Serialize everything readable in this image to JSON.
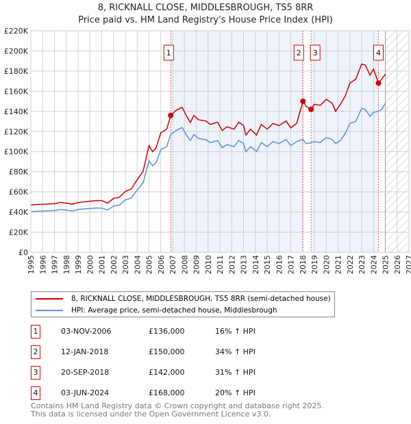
{
  "title": "8, RICKNALL CLOSE, MIDDLESBROUGH, TS5 8RR",
  "subtitle": "Price paid vs. HM Land Registry's House Price Index (HPI)",
  "chart_data": {
    "type": "line",
    "xlim": [
      1995,
      2027
    ],
    "ylim": [
      0,
      220000
    ],
    "x_ticks": [
      "1995",
      "1996",
      "1997",
      "1998",
      "1999",
      "2000",
      "2001",
      "2002",
      "2003",
      "2004",
      "2005",
      "2006",
      "2007",
      "2008",
      "2009",
      "2010",
      "2011",
      "2012",
      "2013",
      "2014",
      "2015",
      "2016",
      "2017",
      "2018",
      "2019",
      "2020",
      "2021",
      "2022",
      "2023",
      "2024",
      "2025",
      "2026",
      "2027"
    ],
    "y_ticks": [
      {
        "v": 0,
        "label": "£0"
      },
      {
        "v": 20000,
        "label": "£20K"
      },
      {
        "v": 40000,
        "label": "£40K"
      },
      {
        "v": 60000,
        "label": "£60K"
      },
      {
        "v": 80000,
        "label": "£80K"
      },
      {
        "v": 100000,
        "label": "£100K"
      },
      {
        "v": 120000,
        "label": "£120K"
      },
      {
        "v": 140000,
        "label": "£140K"
      },
      {
        "v": 160000,
        "label": "£160K"
      },
      {
        "v": 180000,
        "label": "£180K"
      },
      {
        "v": 200000,
        "label": "£200K"
      },
      {
        "v": 220000,
        "label": "£220K"
      }
    ],
    "grid": true,
    "forecast_hatch_from": 2025,
    "series": [
      {
        "name": "8, RICKNALL CLOSE, MIDDLESBROUGH, TS5 8RR (semi-detached house)",
        "color": "#cc0000",
        "x": [
          1995,
          1996,
          1997,
          1997.5,
          1998,
          1998.5,
          1999,
          2000,
          2000.5,
          2001,
          2001.5,
          2002,
          2002.5,
          2003,
          2003.5,
          2004,
          2004.5,
          2005,
          2005.3,
          2005.6,
          2006,
          2006.5,
          2006.84,
          2007.3,
          2007.8,
          2008.2,
          2008.5,
          2008.8,
          2009.2,
          2009.8,
          2010.2,
          2010.8,
          2011.2,
          2011.6,
          2012.2,
          2012.6,
          2013,
          2013.2,
          2013.6,
          2014.1,
          2014.5,
          2015,
          2015.5,
          2016,
          2016.6,
          2017,
          2017.5,
          2018.03,
          2018.3,
          2018.72,
          2019,
          2019.5,
          2020,
          2020.5,
          2020.8,
          2021.2,
          2021.6,
          2022,
          2022.5,
          2023,
          2023.3,
          2023.7,
          2024,
          2024.42,
          2024.7,
          2025
        ],
        "y": [
          47000,
          47800,
          48300,
          49500,
          48900,
          47800,
          49500,
          50700,
          51300,
          51300,
          48900,
          53600,
          54800,
          60600,
          62900,
          72200,
          80400,
          106000,
          100000,
          103700,
          118800,
          122300,
          136000,
          141000,
          144000,
          135000,
          129000,
          136000,
          131600,
          130500,
          127000,
          129300,
          121000,
          124700,
          122300,
          129300,
          125800,
          116500,
          122300,
          116500,
          127000,
          122300,
          128000,
          125800,
          130500,
          123500,
          128000,
          150000,
          145000,
          142000,
          147000,
          146000,
          152000,
          148000,
          140000,
          147000,
          155000,
          168000,
          172000,
          187000,
          186000,
          176000,
          182000,
          168000,
          172000,
          177000
        ]
      },
      {
        "name": "HPI: Average price, semi-detached house, Middlesbrough",
        "color": "#5b8fd4",
        "x": [
          1995,
          1996,
          1997,
          1997.5,
          1998,
          1998.5,
          1999,
          2000,
          2000.5,
          2001,
          2001.5,
          2002,
          2002.5,
          2003,
          2003.5,
          2004,
          2004.5,
          2005,
          2005.3,
          2005.6,
          2006,
          2006.5,
          2006.84,
          2007.3,
          2007.8,
          2008.2,
          2008.5,
          2008.8,
          2009.2,
          2009.8,
          2010.2,
          2010.8,
          2011.2,
          2011.6,
          2012.2,
          2012.6,
          2013,
          2013.2,
          2013.6,
          2014.1,
          2014.5,
          2015,
          2015.5,
          2016,
          2016.6,
          2017,
          2017.5,
          2018.03,
          2018.3,
          2018.72,
          2019,
          2019.5,
          2020,
          2020.5,
          2020.8,
          2021.2,
          2021.6,
          2022,
          2022.5,
          2023,
          2023.3,
          2023.7,
          2024,
          2024.42,
          2024.7,
          2025
        ],
        "y": [
          40500,
          41000,
          41500,
          42500,
          42000,
          41000,
          42500,
          43500,
          44000,
          44000,
          42000,
          46000,
          47000,
          52000,
          54000,
          62000,
          69000,
          91000,
          86000,
          89000,
          102000,
          105000,
          117000,
          121000,
          124000,
          116000,
          111000,
          117000,
          113000,
          112000,
          109000,
          111000,
          104000,
          107000,
          105000,
          111000,
          108000,
          100000,
          105000,
          100000,
          109000,
          105000,
          110000,
          108000,
          112000,
          106000,
          110000,
          112000,
          108000,
          109000,
          110000,
          109000,
          114000,
          112000,
          108000,
          111000,
          118000,
          128000,
          130000,
          143000,
          142000,
          135000,
          139000,
          140000,
          142000,
          148000
        ]
      }
    ],
    "sales": [
      {
        "n": "1",
        "x": 2006.84,
        "y": 136000,
        "date": "03-NOV-2006",
        "price": "£136,000",
        "hpi": "16% ↑ HPI"
      },
      {
        "n": "2",
        "x": 2018.03,
        "y": 150000,
        "date": "12-JAN-2018",
        "price": "£150,000",
        "hpi": "34% ↑ HPI"
      },
      {
        "n": "3",
        "x": 2018.72,
        "y": 142000,
        "date": "20-SEP-2018",
        "price": "£142,000",
        "hpi": "31% ↑ HPI"
      },
      {
        "n": "4",
        "x": 2024.42,
        "y": 168000,
        "date": "03-JUN-2024",
        "price": "£168,000",
        "hpi": "20% ↑ HPI"
      }
    ]
  },
  "legend": {
    "red": "8, RICKNALL CLOSE, MIDDLESBROUGH, TS5 8RR (semi-detached house)",
    "blue": "HPI: Average price, semi-detached house, Middlesbrough"
  },
  "footer": {
    "line1": "Contains HM Land Registry data © Crown copyright and database right 2025.",
    "line2": "This data is licensed under the Open Government Licence v3.0."
  }
}
